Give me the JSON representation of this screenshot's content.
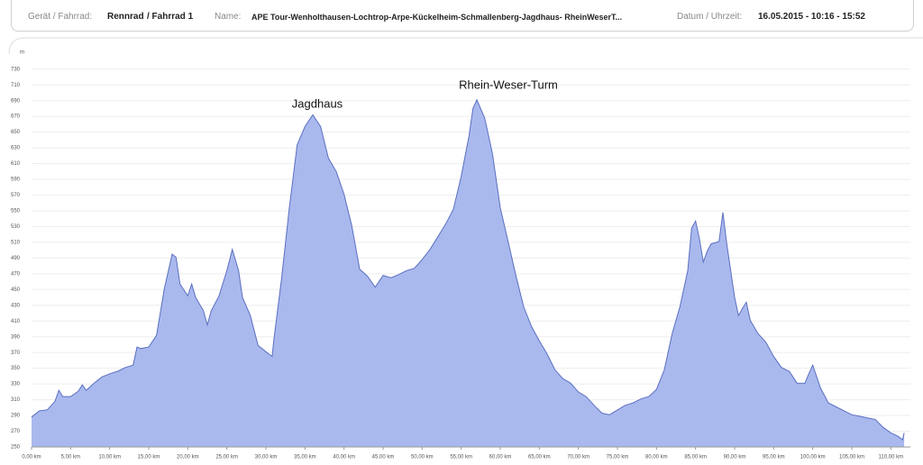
{
  "header": {
    "device_label": "Gerät / Fahrrad:",
    "device": "Rennrad",
    "bike": "/ Fahrrad 1",
    "name_label": "Name:",
    "name": "APE Tour-Wenholthausen-Lochtrop-Arpe-Kückelheim-Schmallenberg-Jagdhaus- RheinWeserT...",
    "date_label": "Datum / Uhrzeit:",
    "date": "16.05.2015 - 10:16 - 15:52"
  },
  "chart_data": {
    "type": "area",
    "y_unit": "m",
    "annotations": [
      "Jagdhaus",
      "Rhein-Weser-Turm"
    ],
    "x": [
      0,
      1,
      2,
      3,
      3.5,
      4,
      5,
      6,
      6.5,
      7,
      8,
      9,
      10,
      11,
      12,
      13,
      13.5,
      14,
      15,
      16,
      17,
      18,
      18.5,
      19,
      20,
      20.5,
      21,
      22,
      22.5,
      23,
      24,
      25,
      25.7,
      26.5,
      27,
      28,
      29,
      30,
      30.8,
      31,
      32,
      33,
      34,
      35,
      36,
      37,
      38,
      39,
      40,
      41,
      42,
      43,
      44,
      45,
      46,
      47,
      48,
      49,
      50,
      51,
      52,
      53,
      54,
      55,
      56,
      56.5,
      57,
      58,
      59,
      60,
      61,
      62,
      63,
      64,
      65,
      66,
      67,
      68,
      69,
      70,
      71,
      72,
      73,
      74,
      75,
      76,
      77,
      78,
      79,
      80,
      81,
      82,
      83,
      84,
      84.5,
      85,
      85.5,
      86,
      86.5,
      87,
      88,
      88.5,
      89,
      90,
      90.5,
      91,
      91.5,
      92,
      93,
      94,
      95,
      96,
      97,
      98,
      99,
      99.5,
      100,
      101,
      102,
      103,
      104,
      105,
      106,
      107,
      108,
      109,
      110,
      111,
      111.5,
      111.7
    ],
    "values": [
      288,
      296,
      297,
      308,
      322,
      314,
      314,
      321,
      329,
      322,
      331,
      339,
      343,
      346,
      351,
      354,
      377,
      375,
      377,
      392,
      451,
      495,
      491,
      457,
      442,
      457,
      440,
      423,
      405,
      423,
      442,
      474,
      501,
      474,
      440,
      417,
      379,
      371,
      365,
      385,
      463,
      554,
      634,
      657,
      672,
      657,
      617,
      600,
      571,
      531,
      476,
      467,
      453,
      468,
      465,
      469,
      474,
      477,
      488,
      501,
      517,
      533,
      552,
      594,
      645,
      680,
      691,
      668,
      623,
      554,
      511,
      468,
      428,
      403,
      385,
      368,
      348,
      337,
      331,
      320,
      314,
      303,
      293,
      291,
      297,
      303,
      306,
      311,
      314,
      323,
      348,
      394,
      428,
      474,
      528,
      537,
      514,
      485,
      499,
      508,
      511,
      548,
      508,
      440,
      417,
      426,
      434,
      411,
      394,
      383,
      365,
      351,
      346,
      331,
      331,
      343,
      354,
      325,
      306,
      301,
      296,
      291,
      289,
      287,
      285,
      275,
      268,
      263,
      259,
      268
    ],
    "color": "#a9b9ee",
    "line_color": "#5b6fc0",
    "grid": true,
    "xlim": [
      0,
      112.5
    ],
    "ylim": [
      250,
      740
    ],
    "yticks": [
      250,
      270,
      290,
      310,
      330,
      350,
      370,
      390,
      410,
      430,
      450,
      470,
      490,
      510,
      530,
      550,
      570,
      590,
      610,
      630,
      650,
      670,
      690,
      710,
      730
    ],
    "xticks": [
      {
        "value": 0,
        "label": "0,00 km"
      },
      {
        "value": 5,
        "label": "5,00 km"
      },
      {
        "value": 10,
        "label": "10,00 km"
      },
      {
        "value": 15,
        "label": "15,00 km"
      },
      {
        "value": 20,
        "label": "20,00 km"
      },
      {
        "value": 25,
        "label": "25,00 km"
      },
      {
        "value": 30,
        "label": "30,00 km"
      },
      {
        "value": 35,
        "label": "35,00 km"
      },
      {
        "value": 40,
        "label": "40,00 km"
      },
      {
        "value": 45,
        "label": "45,00 km"
      },
      {
        "value": 50,
        "label": "50,00 km"
      },
      {
        "value": 55,
        "label": "55,00 km"
      },
      {
        "value": 60,
        "label": "60,00 km"
      },
      {
        "value": 65,
        "label": "65,00 km"
      },
      {
        "value": 70,
        "label": "70,00 km"
      },
      {
        "value": 75,
        "label": "75,00 km"
      },
      {
        "value": 80,
        "label": "80,00 km"
      },
      {
        "value": 85,
        "label": "85,00 km"
      },
      {
        "value": 90,
        "label": "90,00 km"
      },
      {
        "value": 95,
        "label": "95,00 km"
      },
      {
        "value": 100,
        "label": "100,00 km"
      },
      {
        "value": 105,
        "label": "105,00 km"
      },
      {
        "value": 110,
        "label": "110,00 km"
      }
    ]
  }
}
